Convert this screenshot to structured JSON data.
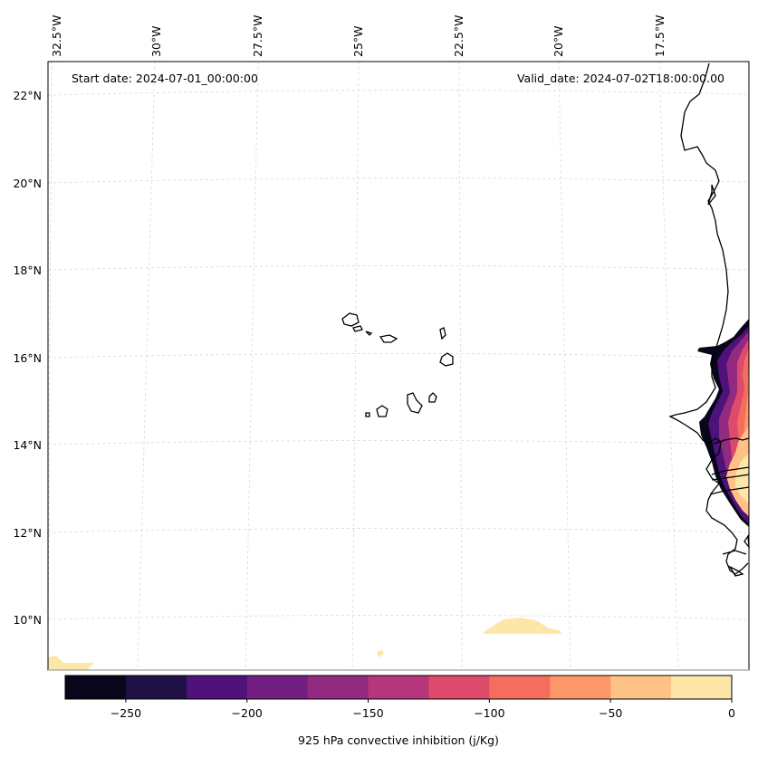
{
  "header": {
    "start_date": "Start date: 2024-07-01_00:00:00",
    "valid_date": "Valid_date: 2024-07-02T18:00:00.00"
  },
  "lon_labels": [
    "32.5°W",
    "30°W",
    "27.5°W",
    "25°W",
    "22.5°W",
    "20°W",
    "17.5°W"
  ],
  "lat_labels": [
    "22°N",
    "20°N",
    "18°N",
    "16°N",
    "14°N",
    "12°N",
    "10°N"
  ],
  "colorbar": {
    "label": "925 hPa convective inhibition (j/Kg)",
    "ticks": [
      "−250",
      "−200",
      "−150",
      "−100",
      "−50",
      "0"
    ],
    "bounds": [
      -275,
      0
    ],
    "levels": [
      -275,
      -250,
      -225,
      -200,
      -175,
      -150,
      -125,
      -100,
      -75,
      -50,
      -25,
      0
    ],
    "colors": [
      "#07061a",
      "#1f1045",
      "#4f127b",
      "#721f81",
      "#922a7f",
      "#b5367a",
      "#dd4a6b",
      "#f36e5c",
      "#fd9668",
      "#fec287",
      "#fde7a8"
    ]
  }
}
